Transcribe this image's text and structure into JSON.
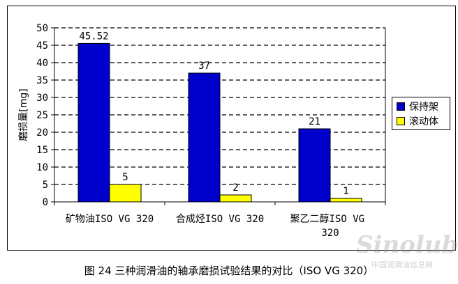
{
  "chart_data": {
    "type": "bar",
    "categories": [
      "矿物油ISO VG 320",
      "合成烃ISO VG 320",
      "聚乙二醇ISO VG 320"
    ],
    "series": [
      {
        "name": "保持架",
        "values": [
          45.52,
          37,
          21
        ],
        "labels": [
          "45.52",
          "37",
          "21"
        ],
        "color": "#0000CC"
      },
      {
        "name": "滚动体",
        "values": [
          5,
          2,
          1
        ],
        "labels": [
          "5",
          "2",
          "1"
        ],
        "color": "#FFFF00"
      }
    ],
    "ylabel": "磨损量[mg]",
    "ylim": [
      0,
      50
    ],
    "yticks": [
      0,
      5,
      10,
      15,
      20,
      25,
      30,
      35,
      40,
      45,
      50
    ],
    "grid": "dashed horizontal",
    "legend_position": "right"
  },
  "caption": "图 24  三种润滑油的轴承磨损试验结果的对比（ISO VG 320）",
  "watermark": "Sinolub",
  "watermark_sub": "中国润滑油信息网"
}
